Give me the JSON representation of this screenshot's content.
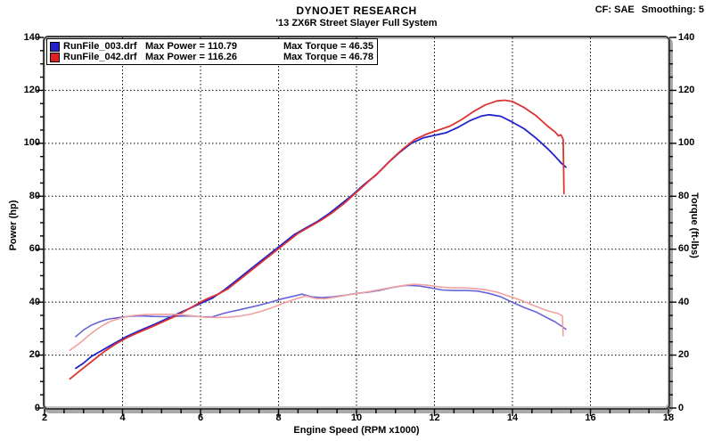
{
  "header": {
    "title": "DYNOJET RESEARCH",
    "subtitle": "'13 ZX6R Street Slayer Full System",
    "cf_label": "CF: SAE",
    "smoothing_label": "Smoothing: 5"
  },
  "legend": [
    {
      "file": "RunFile_003.drf",
      "max_power_label": "Max Power = 110.79",
      "max_torque_label": "Max Torque = 46.35",
      "max_power": 110.79,
      "max_torque": 46.35,
      "color": "#2222cc"
    },
    {
      "file": "RunFile_042.drf",
      "max_power_label": "Max Power = 116.26",
      "max_torque_label": "Max Torque = 46.78",
      "max_power": 116.26,
      "max_torque": 46.78,
      "color": "#dd2222"
    }
  ],
  "chart_data": {
    "type": "line",
    "title": "DYNOJET RESEARCH",
    "subtitle": "'13 ZX6R Street Slayer Full System",
    "correction_factor": "SAE",
    "smoothing": 5,
    "x_axis": {
      "label": "Engine Speed (RPM x1000)",
      "min": 2,
      "max": 18,
      "major_ticks": [
        2,
        4,
        6,
        8,
        10,
        12,
        14,
        16,
        18
      ],
      "minor_step": 0.5,
      "gridlines": [
        4,
        6,
        8,
        10,
        12,
        14,
        16
      ]
    },
    "y_left": {
      "label": "Power (hp)",
      "min": 0,
      "max": 140,
      "major_ticks": [
        0,
        20,
        40,
        60,
        80,
        100,
        120,
        140
      ],
      "minor_step": 5,
      "gridlines": [
        20,
        40,
        60,
        80,
        100,
        120
      ]
    },
    "y_right": {
      "label": "Torque (ft-lbs)",
      "min": 0,
      "max": 140,
      "major_ticks": [
        0,
        20,
        40,
        60,
        80,
        100,
        120,
        140
      ],
      "minor_step": 5
    },
    "grid": {
      "style": "dotted",
      "color": "#000000"
    },
    "legend_position": "top-left",
    "series": [
      {
        "id": "run003-power-curve",
        "name": "RunFile_003.drf Power (hp)",
        "color": "#2222cc",
        "width": 1.8,
        "points": [
          [
            2.8,
            15
          ],
          [
            3.0,
            17
          ],
          [
            3.2,
            19.5
          ],
          [
            3.5,
            22
          ],
          [
            3.8,
            24.5
          ],
          [
            4.1,
            27
          ],
          [
            4.4,
            29
          ],
          [
            4.8,
            31.5
          ],
          [
            5.1,
            33.5
          ],
          [
            5.4,
            35.5
          ],
          [
            5.7,
            37.5
          ],
          [
            6.0,
            39.5
          ],
          [
            6.3,
            41.5
          ],
          [
            6.6,
            44.5
          ],
          [
            6.9,
            48
          ],
          [
            7.2,
            51.5
          ],
          [
            7.5,
            55
          ],
          [
            7.8,
            58.5
          ],
          [
            8.1,
            62
          ],
          [
            8.4,
            65.5
          ],
          [
            8.7,
            68
          ],
          [
            9.0,
            70.5
          ],
          [
            9.3,
            73.5
          ],
          [
            9.6,
            77
          ],
          [
            9.9,
            80.5
          ],
          [
            10.2,
            84.5
          ],
          [
            10.5,
            88
          ],
          [
            10.8,
            92.5
          ],
          [
            11.1,
            96.5
          ],
          [
            11.4,
            100
          ],
          [
            11.7,
            102
          ],
          [
            12.0,
            103
          ],
          [
            12.3,
            104
          ],
          [
            12.6,
            106
          ],
          [
            12.9,
            108.5
          ],
          [
            13.2,
            110.3
          ],
          [
            13.4,
            110.79
          ],
          [
            13.7,
            110.2
          ],
          [
            14.0,
            108
          ],
          [
            14.3,
            105.5
          ],
          [
            14.6,
            102
          ],
          [
            14.9,
            98
          ],
          [
            15.1,
            95
          ],
          [
            15.25,
            92.5
          ],
          [
            15.37,
            91
          ]
        ]
      },
      {
        "id": "run003-torque-curve",
        "name": "RunFile_003.drf Torque (ft-lbs)",
        "color": "#6565d8",
        "width": 1.6,
        "points": [
          [
            2.8,
            27
          ],
          [
            3.0,
            29.5
          ],
          [
            3.2,
            31.3
          ],
          [
            3.4,
            32.5
          ],
          [
            3.6,
            33.5
          ],
          [
            3.9,
            34.2
          ],
          [
            4.2,
            34.7
          ],
          [
            4.5,
            34.8
          ],
          [
            4.8,
            34.6
          ],
          [
            5.1,
            34.5
          ],
          [
            5.4,
            34.7
          ],
          [
            5.7,
            34.8
          ],
          [
            6.0,
            34.5
          ],
          [
            6.3,
            34.4
          ],
          [
            6.6,
            35.8
          ],
          [
            6.9,
            36.8
          ],
          [
            7.2,
            37.8
          ],
          [
            7.5,
            38.8
          ],
          [
            7.8,
            40
          ],
          [
            8.1,
            41.3
          ],
          [
            8.4,
            42.3
          ],
          [
            8.6,
            43
          ],
          [
            8.85,
            42
          ],
          [
            9.1,
            41.7
          ],
          [
            9.4,
            42
          ],
          [
            9.7,
            42.6
          ],
          [
            10.0,
            43.3
          ],
          [
            10.3,
            43.8
          ],
          [
            10.6,
            44.5
          ],
          [
            10.9,
            45.5
          ],
          [
            11.2,
            46.2
          ],
          [
            11.35,
            46.35
          ],
          [
            11.6,
            46.1
          ],
          [
            11.9,
            45.4
          ],
          [
            12.2,
            44.6
          ],
          [
            12.5,
            44.4
          ],
          [
            12.8,
            44.4
          ],
          [
            13.1,
            44.2
          ],
          [
            13.4,
            43.3
          ],
          [
            13.7,
            42
          ],
          [
            14.0,
            39.9
          ],
          [
            14.3,
            38
          ],
          [
            14.6,
            36.3
          ],
          [
            14.9,
            34
          ],
          [
            15.1,
            32.5
          ],
          [
            15.25,
            31
          ],
          [
            15.37,
            29.8
          ]
        ]
      },
      {
        "id": "run042-power-curve",
        "name": "RunFile_042.drf Power (hp)",
        "color": "#dd3333",
        "width": 1.8,
        "points": [
          [
            2.65,
            11
          ],
          [
            2.9,
            14
          ],
          [
            3.2,
            17.5
          ],
          [
            3.5,
            21
          ],
          [
            3.8,
            24
          ],
          [
            4.1,
            26.5
          ],
          [
            4.4,
            28.5
          ],
          [
            4.8,
            31
          ],
          [
            5.1,
            33
          ],
          [
            5.4,
            35
          ],
          [
            5.7,
            37.5
          ],
          [
            6.0,
            40
          ],
          [
            6.2,
            41.5
          ],
          [
            6.45,
            43
          ],
          [
            6.7,
            45
          ],
          [
            7.0,
            48.5
          ],
          [
            7.3,
            52
          ],
          [
            7.6,
            55.5
          ],
          [
            7.9,
            59
          ],
          [
            8.2,
            62.5
          ],
          [
            8.5,
            66
          ],
          [
            8.8,
            68.5
          ],
          [
            9.1,
            71
          ],
          [
            9.4,
            74
          ],
          [
            9.7,
            77.5
          ],
          [
            10.0,
            81.5
          ],
          [
            10.3,
            85.5
          ],
          [
            10.6,
            89.5
          ],
          [
            10.9,
            94
          ],
          [
            11.2,
            98
          ],
          [
            11.5,
            101.5
          ],
          [
            11.8,
            103.5
          ],
          [
            12.1,
            105
          ],
          [
            12.4,
            106.5
          ],
          [
            12.7,
            109
          ],
          [
            13.0,
            112
          ],
          [
            13.3,
            114.5
          ],
          [
            13.6,
            116
          ],
          [
            13.8,
            116.26
          ],
          [
            14.0,
            115.8
          ],
          [
            14.3,
            113.5
          ],
          [
            14.6,
            110.5
          ],
          [
            14.9,
            106.5
          ],
          [
            15.1,
            104.2
          ],
          [
            15.18,
            102.8
          ],
          [
            15.24,
            103.2
          ],
          [
            15.3,
            101.5
          ],
          [
            15.32,
            81
          ]
        ]
      },
      {
        "id": "run042-torque-curve",
        "name": "RunFile_042.drf Torque (ft-lbs)",
        "color": "#f2a0a0",
        "width": 1.6,
        "points": [
          [
            2.65,
            21.8
          ],
          [
            2.9,
            24.5
          ],
          [
            3.1,
            27
          ],
          [
            3.3,
            29.3
          ],
          [
            3.5,
            31.3
          ],
          [
            3.7,
            32.8
          ],
          [
            4.0,
            34.2
          ],
          [
            4.3,
            35
          ],
          [
            4.6,
            35.3
          ],
          [
            4.9,
            35.4
          ],
          [
            5.2,
            35.4
          ],
          [
            5.5,
            35.3
          ],
          [
            5.8,
            34.8
          ],
          [
            6.1,
            34.3
          ],
          [
            6.4,
            34.2
          ],
          [
            6.7,
            34.3
          ],
          [
            7.0,
            34.7
          ],
          [
            7.3,
            35.5
          ],
          [
            7.6,
            36.7
          ],
          [
            7.9,
            38.3
          ],
          [
            8.2,
            40
          ],
          [
            8.5,
            41.5
          ],
          [
            8.7,
            42.3
          ],
          [
            8.95,
            41.4
          ],
          [
            9.2,
            41.3
          ],
          [
            9.5,
            42
          ],
          [
            9.8,
            42.8
          ],
          [
            10.1,
            43.4
          ],
          [
            10.4,
            44.2
          ],
          [
            10.7,
            45
          ],
          [
            11.0,
            45.8
          ],
          [
            11.3,
            46.5
          ],
          [
            11.5,
            46.78
          ],
          [
            11.8,
            46.4
          ],
          [
            12.1,
            45.8
          ],
          [
            12.4,
            45.4
          ],
          [
            12.7,
            45.4
          ],
          [
            13.0,
            45.2
          ],
          [
            13.3,
            44.7
          ],
          [
            13.6,
            43.8
          ],
          [
            13.9,
            42.3
          ],
          [
            14.2,
            40.8
          ],
          [
            14.5,
            39
          ],
          [
            14.8,
            37.3
          ],
          [
            15.0,
            36.3
          ],
          [
            15.15,
            35.8
          ],
          [
            15.28,
            34.8
          ],
          [
            15.3,
            27.3
          ]
        ]
      }
    ]
  }
}
